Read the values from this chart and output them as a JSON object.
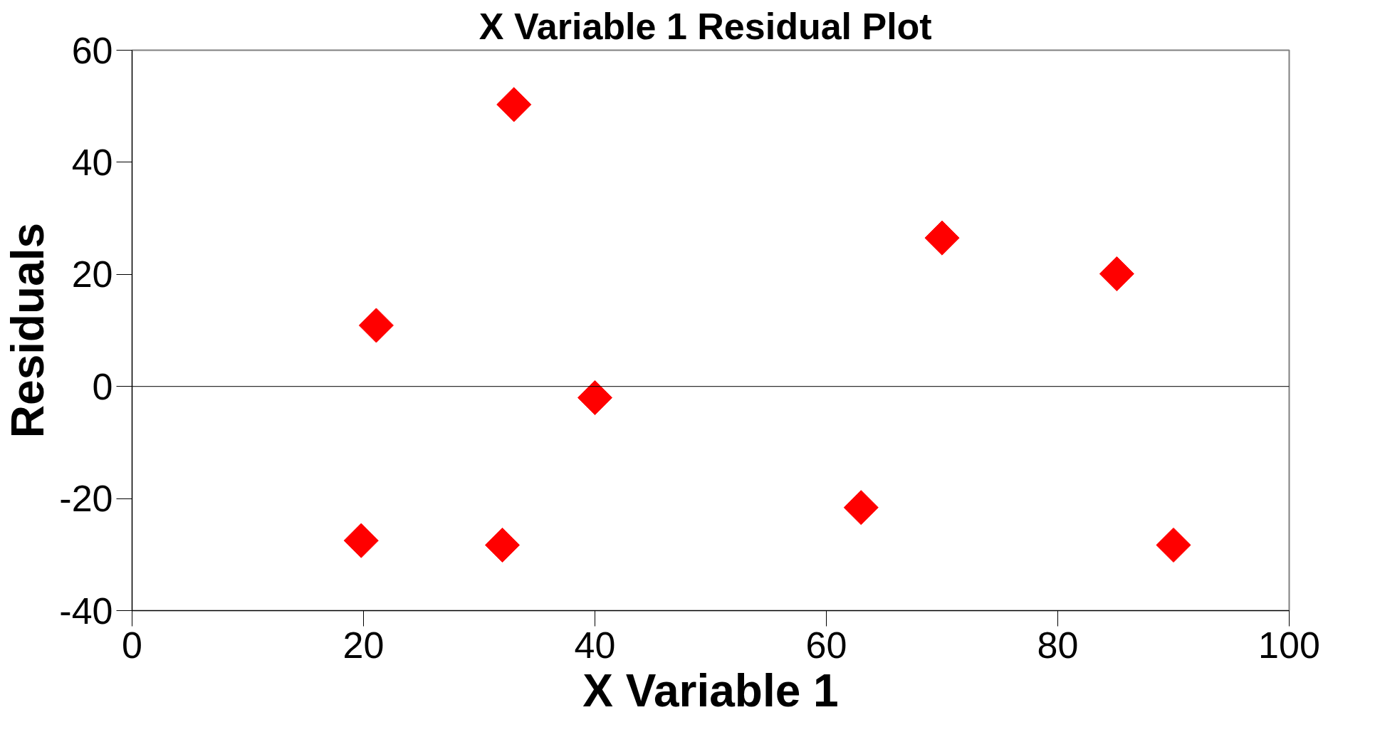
{
  "chart_data": {
    "type": "scatter",
    "title": "X Variable 1  Residual Plot",
    "xlabel": "X Variable 1",
    "ylabel": "Residuals",
    "x": [
      19.8,
      21.1,
      32.0,
      33.0,
      40.0,
      63.0,
      70.0,
      85.1,
      90.0
    ],
    "values": [
      -27.5,
      10.9,
      -28.3,
      50.3,
      -2.0,
      -21.6,
      26.5,
      20.1,
      -28.3
    ],
    "color": "#ff0000",
    "ref_lines": [
      {
        "axis": "y",
        "value": 0
      }
    ],
    "marker": "diamond",
    "xlim": [
      0,
      100
    ],
    "ylim": [
      -40,
      60
    ],
    "xticks": [
      0,
      20,
      40,
      60,
      80,
      100
    ],
    "yticks": [
      -40,
      -20,
      0,
      20,
      40,
      60
    ]
  }
}
